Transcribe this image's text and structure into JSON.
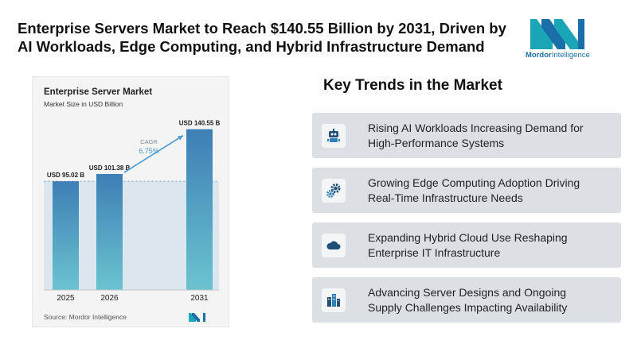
{
  "headline": {
    "line1": "Enterprise Servers Market to Reach $140.55 Billion by 2031, Driven by",
    "line2": "AI Workloads, Edge Computing, and Hybrid Infrastructure Demand"
  },
  "brand": {
    "name_bold": "Mordor",
    "name_rest": "Intelligence",
    "accent": "#1aa6b7",
    "text_color": "#1b6fa8"
  },
  "chart": {
    "source": "Source: Mordor Intelligence",
    "cagr_label": "CAGR",
    "cagr_value": "6.75%"
  },
  "chart_data": {
    "type": "bar",
    "title": "Enterprise Server Market",
    "subtitle": "Market Size in USD Billion",
    "categories": [
      "2025",
      "2026",
      "2031"
    ],
    "values": [
      95.02,
      101.38,
      140.55
    ],
    "data_labels": [
      "USD 95.02 B",
      "USD 101.38 B",
      "USD 140.55 B"
    ],
    "ylim": [
      0,
      150
    ],
    "grid": false,
    "colors": {
      "bar_top": "#3d7fb6",
      "bar_bottom": "#6bc3cf",
      "baseline_area": "#dce6ef",
      "arrow": "#4a9bd1"
    }
  },
  "trends": {
    "title": "Key Trends in the Market",
    "items": [
      {
        "icon": "robot-icon",
        "line1": "Rising AI Workloads Increasing Demand for",
        "line2": "High-Performance Systems"
      },
      {
        "icon": "gears-icon",
        "line1": "Growing Edge Computing Adoption Driving",
        "line2": "Real-Time Infrastructure Needs"
      },
      {
        "icon": "cloud-icon",
        "line1": "Expanding Hybrid Cloud Use Reshaping",
        "line2": "Enterprise IT Infrastructure"
      },
      {
        "icon": "server-buildings-icon",
        "line1": "Advancing Server Designs and Ongoing",
        "line2": "Supply Challenges Impacting Availability"
      }
    ]
  }
}
